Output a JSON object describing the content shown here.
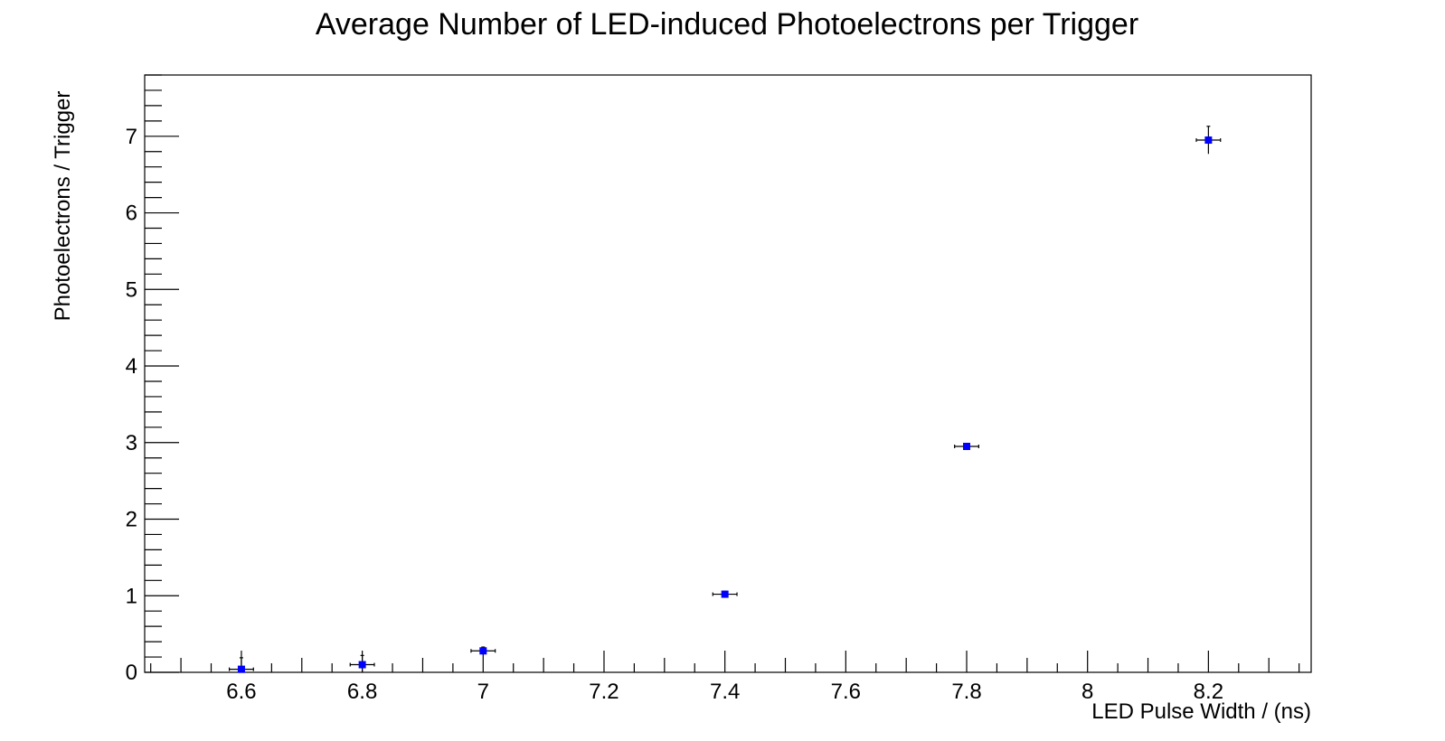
{
  "chart_data": {
    "type": "scatter",
    "title": "Average Number of LED-induced Photoelectrons per Trigger",
    "xlabel": "LED Pulse Width / (ns)",
    "ylabel": "Photoelectrons / Trigger",
    "xlim": [
      6.44,
      8.37
    ],
    "ylim": [
      0,
      7.8
    ],
    "x_major_ticks": [
      6.6,
      6.8,
      7,
      7.2,
      7.4,
      7.6,
      7.8,
      8,
      8.2
    ],
    "x_tick_labels": [
      "6.6",
      "6.8",
      "7",
      "7.2",
      "7.4",
      "7.6",
      "7.8",
      "8",
      "8.2"
    ],
    "y_major_ticks": [
      0,
      1,
      2,
      3,
      4,
      5,
      6,
      7
    ],
    "y_tick_labels": [
      "0",
      "1",
      "2",
      "3",
      "4",
      "5",
      "6",
      "7"
    ],
    "grid": false,
    "legend": "none",
    "marker": "square",
    "marker_color": "#0000ff",
    "error_bar_color": "#000000",
    "series": [
      {
        "points": [
          {
            "x": 6.6,
            "y": 0.04,
            "xerr": 0.02,
            "yerr": 0.15
          },
          {
            "x": 6.8,
            "y": 0.1,
            "xerr": 0.02,
            "yerr": 0.12
          },
          {
            "x": 7.0,
            "y": 0.28,
            "xerr": 0.02,
            "yerr": 0.05
          },
          {
            "x": 7.4,
            "y": 1.02,
            "xerr": 0.02,
            "yerr": 0.04
          },
          {
            "x": 7.8,
            "y": 2.95,
            "xerr": 0.02,
            "yerr": 0.04
          },
          {
            "x": 8.2,
            "y": 6.95,
            "xerr": 0.02,
            "yerr": 0.18
          }
        ]
      }
    ]
  }
}
